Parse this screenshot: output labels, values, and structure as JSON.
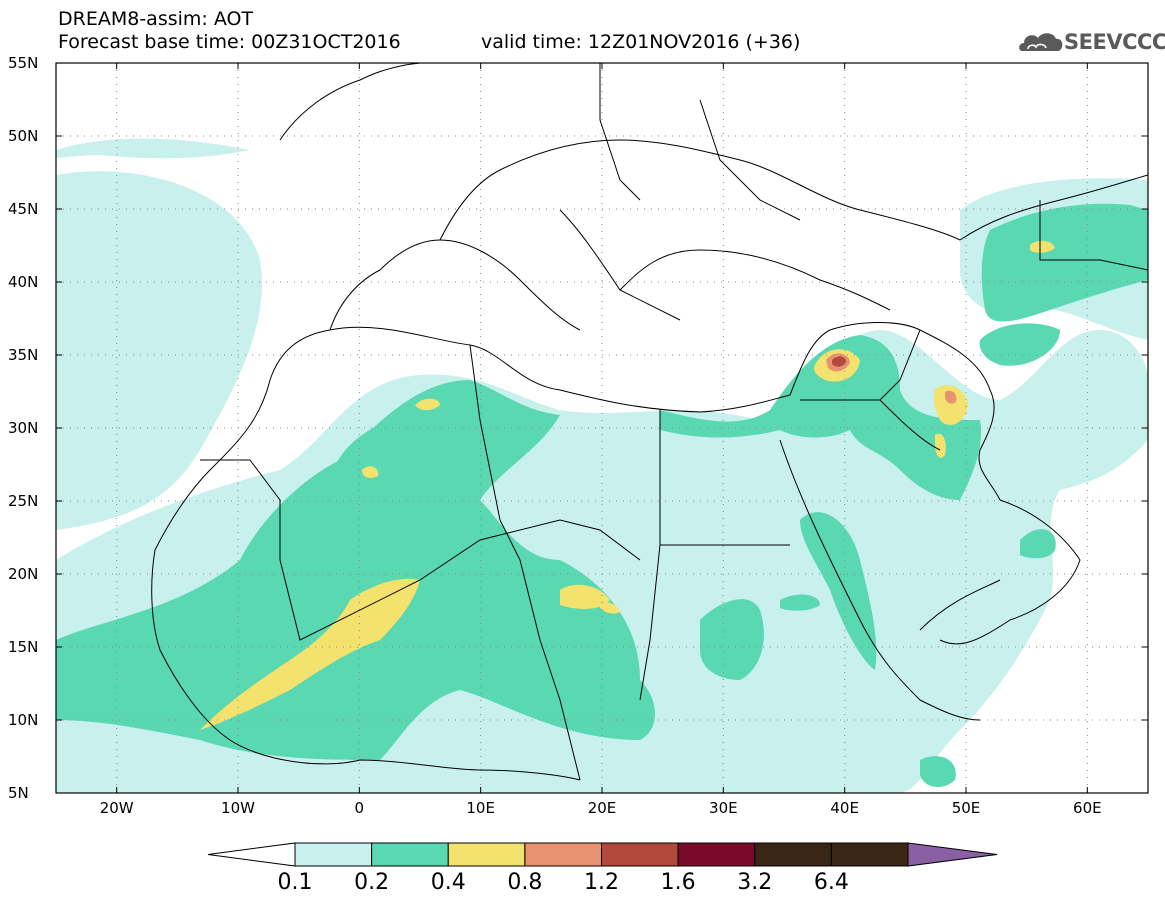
{
  "header": {
    "title": "DREAM8-assim: AOT",
    "base_time": "Forecast base time: 00Z31OCT2016",
    "valid_time": "valid time: 12Z01NOV2016 (+36)",
    "logo_text": "SEEVCCC",
    "logo_icon": "cloud-logo-icon"
  },
  "map": {
    "lon_range": [
      -25,
      65
    ],
    "lat_range": [
      5,
      55
    ],
    "lat_labels": [
      "55N",
      "50N",
      "45N",
      "40N",
      "35N",
      "30N",
      "25N",
      "20N",
      "15N",
      "10N",
      "5N"
    ],
    "lon_labels": [
      "20W",
      "10W",
      "0",
      "10E",
      "20E",
      "30E",
      "40E",
      "50E",
      "60E"
    ],
    "grid": "dotted"
  },
  "colorbar": {
    "labels": [
      "0.1",
      "0.2",
      "0.4",
      "0.8",
      "1.2",
      "1.6",
      "3.2",
      "6.4"
    ],
    "colors": [
      "#ffffff",
      "#c8f0ec",
      "#5ad8b2",
      "#f4e26e",
      "#e79270",
      "#b14a3c",
      "#7a0a2a",
      "#3a2614",
      "#8a5fa3"
    ]
  }
}
